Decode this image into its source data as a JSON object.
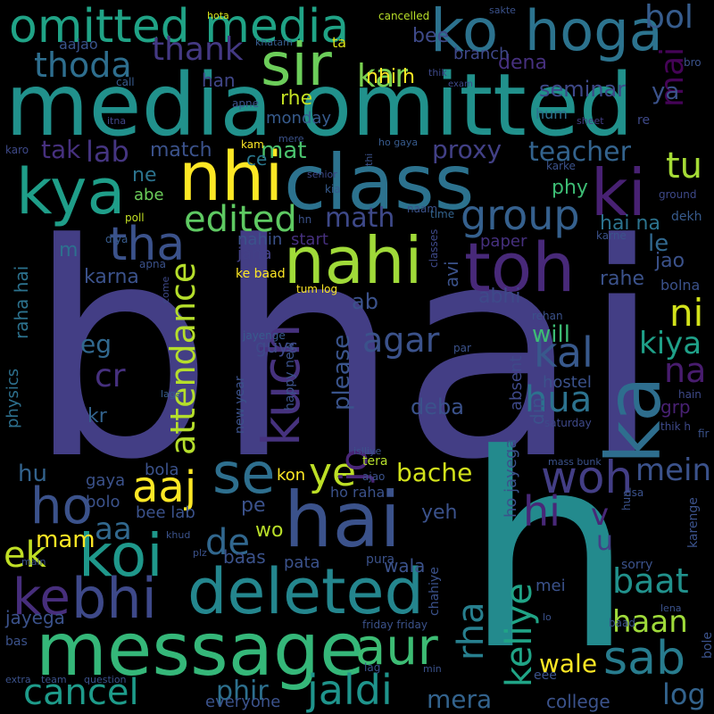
{
  "background": "#000000",
  "words": [
    {
      "text": "bhai",
      "color": "#433e85"
    },
    {
      "text": "h",
      "color": "#238a8d"
    },
    {
      "text": "media omitted",
      "color": "#21918c"
    },
    {
      "text": "nahi",
      "color": "#a0da39"
    },
    {
      "text": "class",
      "color": "#2c728e"
    },
    {
      "text": "toh",
      "color": "#482979"
    },
    {
      "text": "hai",
      "color": "#3b528b"
    },
    {
      "text": "message",
      "color": "#35b779"
    },
    {
      "text": "deleted",
      "color": "#24868e"
    },
    {
      "text": "koi",
      "color": "#1f988b"
    },
    {
      "text": "ka",
      "color": "#2e6e8e"
    },
    {
      "text": "hoga",
      "color": "#2c738e"
    },
    {
      "text": "ko",
      "color": "#2c728e"
    },
    {
      "text": "omitted media",
      "color": "#20a386"
    },
    {
      "text": "sir",
      "color": "#6ccd5a"
    },
    {
      "text": "kya",
      "color": "#1f9e89"
    },
    {
      "text": "nhi",
      "color": "#fde725"
    },
    {
      "text": "ki",
      "color": "#482173"
    },
    {
      "text": "se",
      "color": "#2e6f8e"
    },
    {
      "text": "bhi",
      "color": "#3e4989"
    },
    {
      "text": "sab",
      "color": "#287c8e"
    },
    {
      "text": "aur",
      "color": "#3dbc74"
    },
    {
      "text": "jaldi",
      "color": "#1f948c"
    },
    {
      "text": "tha",
      "color": "#3b528b"
    },
    {
      "text": "group",
      "color": "#35608d"
    },
    {
      "text": "ke",
      "color": "#472e7c"
    },
    {
      "text": "ho",
      "color": "#3b528b"
    },
    {
      "text": "kuch",
      "color": "#46327e"
    },
    {
      "text": "aaj",
      "color": "#fde725"
    },
    {
      "text": "woh",
      "color": "#433e85"
    },
    {
      "text": "hi",
      "color": "#482878"
    },
    {
      "text": "ye",
      "color": "#bddf26"
    },
    {
      "text": "cancel",
      "color": "#1e9b8a"
    },
    {
      "text": "kal",
      "color": "#38598c"
    },
    {
      "text": "thoda",
      "color": "#2e6e8e"
    },
    {
      "text": "edited",
      "color": "#5ec962"
    },
    {
      "text": "attendance",
      "color": "#b5de2b"
    },
    {
      "text": "agar",
      "color": "#3b528b"
    },
    {
      "text": "baat",
      "color": "#21918c"
    },
    {
      "text": "ni",
      "color": "#d2e21b"
    },
    {
      "text": "kar",
      "color": "#7ad151"
    },
    {
      "text": "thank",
      "color": "#443983"
    },
    {
      "text": "math",
      "color": "#3e4989"
    },
    {
      "text": "lab",
      "color": "#453581"
    },
    {
      "text": "tak",
      "color": "#46307e"
    },
    {
      "text": "hua",
      "color": "#2c728e"
    },
    {
      "text": "tu",
      "color": "#a5db36"
    },
    {
      "text": "mein",
      "color": "#3b528b"
    },
    {
      "text": "haan",
      "color": "#9fda3a"
    },
    {
      "text": "mai",
      "color": "#450457"
    },
    {
      "text": "bol",
      "color": "#365c8d"
    },
    {
      "text": "na",
      "color": "#481c6e"
    },
    {
      "text": "kiya",
      "color": "#1fa088"
    },
    {
      "text": "cr",
      "color": "#46307e"
    },
    {
      "text": "eg",
      "color": "#31688e"
    },
    {
      "text": "jo",
      "color": "#482576"
    },
    {
      "text": "please",
      "color": "#3a548c"
    },
    {
      "text": "de",
      "color": "#31678e"
    },
    {
      "text": "aa",
      "color": "#31688e"
    },
    {
      "text": "ek",
      "color": "#c0df25"
    },
    {
      "text": "mam",
      "color": "#fde725"
    },
    {
      "text": "bache",
      "color": "#d2e21b"
    },
    {
      "text": "log",
      "color": "#33638d"
    },
    {
      "text": "wale",
      "color": "#fde725"
    },
    {
      "text": "mera",
      "color": "#33638d"
    },
    {
      "text": "phir",
      "color": "#2d708e"
    },
    {
      "text": "v",
      "color": "#482878"
    },
    {
      "text": "u",
      "color": "#424086"
    },
    {
      "text": "rha",
      "color": "#277f8e"
    },
    {
      "text": "keliye",
      "color": "#20a486"
    },
    {
      "text": "teacher",
      "color": "#33638d"
    },
    {
      "text": "proxy",
      "color": "#424086"
    },
    {
      "text": "seminar",
      "color": "#3e4989"
    },
    {
      "text": "dena",
      "color": "#46307e"
    },
    {
      "text": "ya",
      "color": "#3b528b"
    },
    {
      "text": "nhi h",
      "color": "#fde725"
    },
    {
      "text": "bee",
      "color": "#3e4a89"
    },
    {
      "text": "branch",
      "color": "#3f4889"
    },
    {
      "text": "cancelled",
      "color": "#b8de29"
    },
    {
      "text": "ta",
      "color": "#d8e219"
    },
    {
      "text": "khatam",
      "color": "#375b8d"
    },
    {
      "text": "aajao",
      "color": "#3a548c"
    },
    {
      "text": "hota",
      "color": "#d8e219"
    },
    {
      "text": "sakte",
      "color": "#3b528b"
    },
    {
      "text": "thik",
      "color": "#3e4989"
    },
    {
      "text": "exam",
      "color": "#3e4989"
    },
    {
      "text": "call",
      "color": "#375b8d"
    },
    {
      "text": "han",
      "color": "#404688"
    },
    {
      "text": "apne",
      "color": "#3b528b"
    },
    {
      "text": "bro",
      "color": "#3b528b"
    },
    {
      "text": "itna",
      "color": "#404688"
    },
    {
      "text": "rhe",
      "color": "#c2df23"
    },
    {
      "text": "monday",
      "color": "#375b8d"
    },
    {
      "text": "hum",
      "color": "#2d708e"
    },
    {
      "text": "sheet",
      "color": "#433e85"
    },
    {
      "text": "re",
      "color": "#3e4989"
    },
    {
      "text": "mat",
      "color": "#4ac16d"
    },
    {
      "text": "match",
      "color": "#3b528b"
    },
    {
      "text": "ce",
      "color": "#2a788e"
    },
    {
      "text": "kam",
      "color": "#fde725"
    },
    {
      "text": "mere",
      "color": "#3b528b"
    },
    {
      "text": "ho gaya",
      "color": "#375b8d"
    },
    {
      "text": "karo",
      "color": "#3e4989"
    },
    {
      "text": "thi",
      "color": "#3b528b"
    },
    {
      "text": "senior",
      "color": "#3e4989"
    },
    {
      "text": "kia",
      "color": "#375b8d"
    },
    {
      "text": "karke",
      "color": "#3b528b"
    },
    {
      "text": "phy",
      "color": "#3dbc74"
    },
    {
      "text": "ne",
      "color": "#2c738e"
    },
    {
      "text": "abe",
      "color": "#6ccd5a"
    },
    {
      "text": "poll",
      "color": "#c2df23"
    },
    {
      "text": "hn",
      "color": "#3b528b"
    },
    {
      "text": "naam",
      "color": "#3b528b"
    },
    {
      "text": "time",
      "color": "#33638d"
    },
    {
      "text": "ground",
      "color": "#3e4989"
    },
    {
      "text": "dekh",
      "color": "#375b8d"
    },
    {
      "text": "diya",
      "color": "#375b8d"
    },
    {
      "text": "start",
      "color": "#46307e"
    },
    {
      "text": "nahin",
      "color": "#3b528b"
    },
    {
      "text": "classes",
      "color": "#3e4989"
    },
    {
      "text": "hai na",
      "color": "#2c738e"
    },
    {
      "text": "karne",
      "color": "#3b528b"
    },
    {
      "text": "le",
      "color": "#31688e"
    },
    {
      "text": "m",
      "color": "#2d708e"
    },
    {
      "text": "jana",
      "color": "#424086"
    },
    {
      "text": "paper",
      "color": "#46307e"
    },
    {
      "text": "apna",
      "color": "#3b528b"
    },
    {
      "text": "ke baad",
      "color": "#fde725"
    },
    {
      "text": "jao",
      "color": "#3b528b"
    },
    {
      "text": "karna",
      "color": "#3b528b"
    },
    {
      "text": "come",
      "color": "#3e4989"
    },
    {
      "text": "tum log",
      "color": "#fde725"
    },
    {
      "text": "rahe",
      "color": "#3b528b"
    },
    {
      "text": "bolna",
      "color": "#3b528b"
    },
    {
      "text": "raha hai",
      "color": "#2c728e"
    },
    {
      "text": "avi",
      "color": "#3b528b"
    },
    {
      "text": "abhi",
      "color": "#3e4989"
    },
    {
      "text": "ab",
      "color": "#3b528b"
    },
    {
      "text": "rehan",
      "color": "#3b528b"
    },
    {
      "text": "will",
      "color": "#3dbc74"
    },
    {
      "text": "absent",
      "color": "#3e4989"
    },
    {
      "text": "par",
      "color": "#3b528b"
    },
    {
      "text": "jayenge",
      "color": "#375b8d"
    },
    {
      "text": "guys",
      "color": "#3e4989"
    },
    {
      "text": "laga",
      "color": "#375b8d"
    },
    {
      "text": "physics",
      "color": "#2d708e"
    },
    {
      "text": "new year",
      "color": "#3b528b"
    },
    {
      "text": "happy new",
      "color": "#3b528b"
    },
    {
      "text": "deba",
      "color": "#3b528b"
    },
    {
      "text": "hostel",
      "color": "#3b528b"
    },
    {
      "text": "hain",
      "color": "#3e4989"
    },
    {
      "text": "saturday",
      "color": "#3e4989"
    },
    {
      "text": "grp",
      "color": "#482173"
    },
    {
      "text": "din",
      "color": "#3b528b"
    },
    {
      "text": "thik h",
      "color": "#3e4989"
    },
    {
      "text": "fir",
      "color": "#3b528b"
    },
    {
      "text": "kr",
      "color": "#33638d"
    },
    {
      "text": "islliye",
      "color": "#3b528b"
    },
    {
      "text": "mass bunk",
      "color": "#3b528b"
    },
    {
      "text": "hu",
      "color": "#33638d"
    },
    {
      "text": "gaya",
      "color": "#3b528b"
    },
    {
      "text": "bola",
      "color": "#3b528b"
    },
    {
      "text": "tera",
      "color": "#b5de2b"
    },
    {
      "text": "kon",
      "color": "#fde725"
    },
    {
      "text": "ajao",
      "color": "#3b528b"
    },
    {
      "text": "ho raha",
      "color": "#3b528b"
    },
    {
      "text": "ho jayega",
      "color": "#3b528b"
    },
    {
      "text": "bolo",
      "color": "#3b528b"
    },
    {
      "text": "yeh",
      "color": "#3b528b"
    },
    {
      "text": "pe",
      "color": "#3b528b"
    },
    {
      "text": "bee lab",
      "color": "#3b528b"
    },
    {
      "text": "hun",
      "color": "#3b528b"
    },
    {
      "text": "dsa",
      "color": "#3b528b"
    },
    {
      "text": "karenge",
      "color": "#3b528b"
    },
    {
      "text": "wo",
      "color": "#b8de29"
    },
    {
      "text": "khud",
      "color": "#3b528b"
    },
    {
      "text": "baas",
      "color": "#3b528b"
    },
    {
      "text": "pura",
      "color": "#3b528b"
    },
    {
      "text": "plz",
      "color": "#3b528b"
    },
    {
      "text": "main",
      "color": "#3b528b"
    },
    {
      "text": "pata",
      "color": "#3b528b"
    },
    {
      "text": "wala",
      "color": "#3b528b"
    },
    {
      "text": "sorry",
      "color": "#3b528b"
    },
    {
      "text": "chahiye",
      "color": "#3b528b"
    },
    {
      "text": "mei",
      "color": "#3b528b"
    },
    {
      "text": "lena",
      "color": "#3b528b"
    },
    {
      "text": "lo",
      "color": "#3b528b"
    },
    {
      "text": "jayega",
      "color": "#3b528b"
    },
    {
      "text": "friday friday",
      "color": "#3b528b"
    },
    {
      "text": "baad",
      "color": "#3b528b"
    },
    {
      "text": "bas",
      "color": "#3b528b"
    },
    {
      "text": "bole",
      "color": "#3b528b"
    },
    {
      "text": "lag",
      "color": "#3b528b"
    },
    {
      "text": "min",
      "color": "#3b528b"
    },
    {
      "text": "eee",
      "color": "#3b528b"
    },
    {
      "text": "extra",
      "color": "#3b528b"
    },
    {
      "text": "team",
      "color": "#3b528b"
    },
    {
      "text": "question",
      "color": "#3b528b"
    },
    {
      "text": "everyone",
      "color": "#3b528b"
    },
    {
      "text": "college",
      "color": "#3b528b"
    }
  ]
}
